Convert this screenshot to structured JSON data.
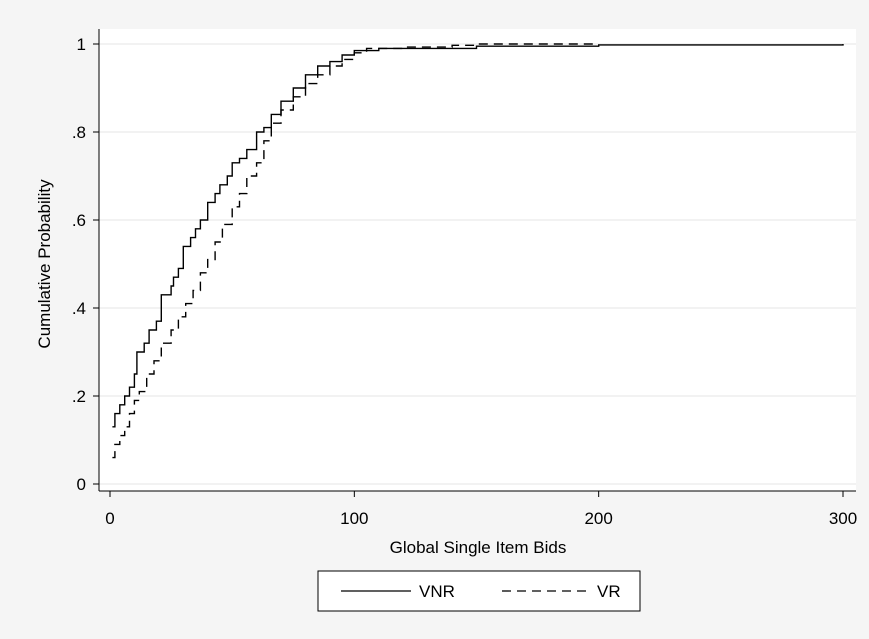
{
  "chart_data": {
    "type": "line",
    "title": "",
    "xlabel": "Global Single Item Bids",
    "ylabel": "Cumulative Probability",
    "xlim": [
      0,
      300
    ],
    "ylim": [
      0,
      1
    ],
    "x_ticks": [
      0,
      100,
      200,
      300
    ],
    "x_tick_labels": [
      "0",
      "100",
      "200",
      "300"
    ],
    "y_ticks": [
      0,
      0.2,
      0.4,
      0.6,
      0.8,
      1
    ],
    "y_tick_labels": [
      "0",
      ".2",
      ".4",
      ".6",
      ".8",
      "1"
    ],
    "grid": "horizontal",
    "legend_position": "bottom",
    "series": [
      {
        "name": "VNR",
        "style": "solid",
        "color": "#000000",
        "points": [
          [
            1,
            0.13
          ],
          [
            2,
            0.16
          ],
          [
            4,
            0.18
          ],
          [
            6,
            0.2
          ],
          [
            8,
            0.22
          ],
          [
            10,
            0.25
          ],
          [
            11,
            0.3
          ],
          [
            14,
            0.32
          ],
          [
            16,
            0.35
          ],
          [
            19,
            0.37
          ],
          [
            21,
            0.43
          ],
          [
            25,
            0.45
          ],
          [
            26,
            0.47
          ],
          [
            28,
            0.49
          ],
          [
            30,
            0.54
          ],
          [
            33,
            0.56
          ],
          [
            35,
            0.58
          ],
          [
            37,
            0.6
          ],
          [
            40,
            0.64
          ],
          [
            43,
            0.66
          ],
          [
            45,
            0.68
          ],
          [
            48,
            0.7
          ],
          [
            50,
            0.73
          ],
          [
            53,
            0.74
          ],
          [
            56,
            0.76
          ],
          [
            60,
            0.8
          ],
          [
            63,
            0.81
          ],
          [
            66,
            0.84
          ],
          [
            70,
            0.87
          ],
          [
            75,
            0.9
          ],
          [
            80,
            0.93
          ],
          [
            85,
            0.95
          ],
          [
            90,
            0.96
          ],
          [
            95,
            0.975
          ],
          [
            100,
            0.985
          ],
          [
            110,
            0.99
          ],
          [
            150,
            0.995
          ],
          [
            200,
            0.998
          ],
          [
            300,
            1.0
          ]
        ]
      },
      {
        "name": "VR",
        "style": "dashed",
        "color": "#000000",
        "points": [
          [
            1,
            0.06
          ],
          [
            2,
            0.09
          ],
          [
            4,
            0.11
          ],
          [
            6,
            0.13
          ],
          [
            8,
            0.16
          ],
          [
            10,
            0.19
          ],
          [
            12,
            0.21
          ],
          [
            15,
            0.25
          ],
          [
            18,
            0.28
          ],
          [
            21,
            0.32
          ],
          [
            25,
            0.35
          ],
          [
            28,
            0.38
          ],
          [
            31,
            0.41
          ],
          [
            34,
            0.44
          ],
          [
            37,
            0.48
          ],
          [
            40,
            0.51
          ],
          [
            43,
            0.55
          ],
          [
            46,
            0.59
          ],
          [
            50,
            0.63
          ],
          [
            53,
            0.66
          ],
          [
            56,
            0.7
          ],
          [
            60,
            0.73
          ],
          [
            63,
            0.78
          ],
          [
            66,
            0.82
          ],
          [
            70,
            0.85
          ],
          [
            75,
            0.88
          ],
          [
            80,
            0.91
          ],
          [
            85,
            0.93
          ],
          [
            90,
            0.95
          ],
          [
            95,
            0.965
          ],
          [
            100,
            0.98
          ],
          [
            105,
            0.99
          ],
          [
            120,
            0.993
          ],
          [
            140,
            0.997
          ],
          [
            150,
            1.0
          ],
          [
            200,
            1.0
          ]
        ]
      }
    ]
  }
}
